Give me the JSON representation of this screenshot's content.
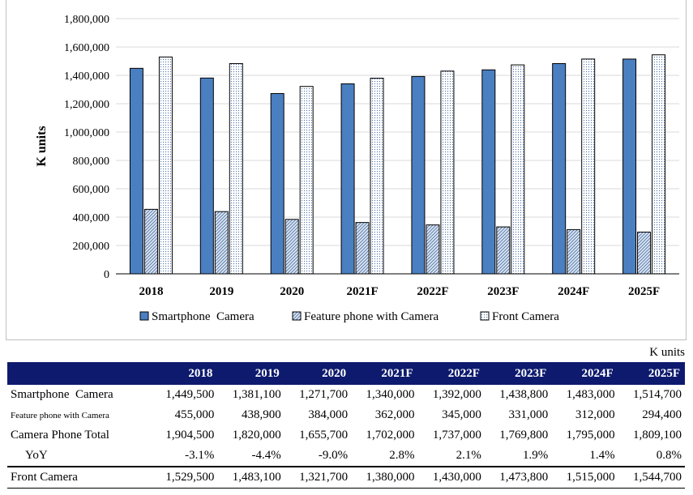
{
  "chart_data": {
    "type": "bar",
    "title": "",
    "ylabel": "K units",
    "ylim": [
      0,
      1800000
    ],
    "yticks": [
      "0",
      "200,000",
      "400,000",
      "600,000",
      "800,000",
      "1,000,000",
      "1,200,000",
      "1,400,000",
      "1,600,000",
      "1,800,000"
    ],
    "categories": [
      "2018",
      "2019",
      "2020",
      "2021F",
      "2022F",
      "2023F",
      "2024F",
      "2025F"
    ],
    "series": [
      {
        "name": "Smartphone  Camera",
        "values": [
          1449500,
          1381100,
          1271700,
          1340000,
          1392000,
          1438800,
          1483000,
          1514700
        ],
        "color": "#4a7fc1",
        "pattern": "solid"
      },
      {
        "name": "Feature phone with Camera",
        "values": [
          455000,
          438900,
          384000,
          362000,
          345000,
          331000,
          312000,
          294400
        ],
        "color": "#dbe5f1",
        "pattern": "diagonal"
      },
      {
        "name": "Front Camera",
        "values": [
          1529500,
          1483100,
          1321700,
          1380000,
          1430000,
          1473800,
          1515000,
          1544700
        ],
        "color": "#ffffff",
        "pattern": "dots"
      }
    ],
    "legend_position": "bottom",
    "grid": true
  },
  "table": {
    "units": "K units",
    "headers": [
      "2018",
      "2019",
      "2020",
      "2021F",
      "2022F",
      "2023F",
      "2024F",
      "2025F"
    ],
    "rows": [
      {
        "label": "Smartphone  Camera",
        "values": [
          "1,449,500",
          "1,381,100",
          "1,271,700",
          "1,340,000",
          "1,392,000",
          "1,438,800",
          "1,483,000",
          "1,514,700"
        ]
      },
      {
        "label": "Feature phone with Camera",
        "values": [
          "455,000",
          "438,900",
          "384,000",
          "362,000",
          "345,000",
          "331,000",
          "312,000",
          "294,400"
        ]
      },
      {
        "label": "Camera Phone Total",
        "values": [
          "1,904,500",
          "1,820,000",
          "1,655,700",
          "1,702,000",
          "1,737,000",
          "1,769,800",
          "1,795,000",
          "1,809,100"
        ]
      },
      {
        "label": "YoY",
        "values": [
          "-3.1%",
          "-4.4%",
          "-9.0%",
          "2.8%",
          "2.1%",
          "1.9%",
          "1.4%",
          "0.8%"
        ]
      },
      {
        "label": "Front Camera",
        "values": [
          "1,529,500",
          "1,483,100",
          "1,321,700",
          "1,380,000",
          "1,430,000",
          "1,473,800",
          "1,515,000",
          "1,544,700"
        ]
      }
    ]
  }
}
